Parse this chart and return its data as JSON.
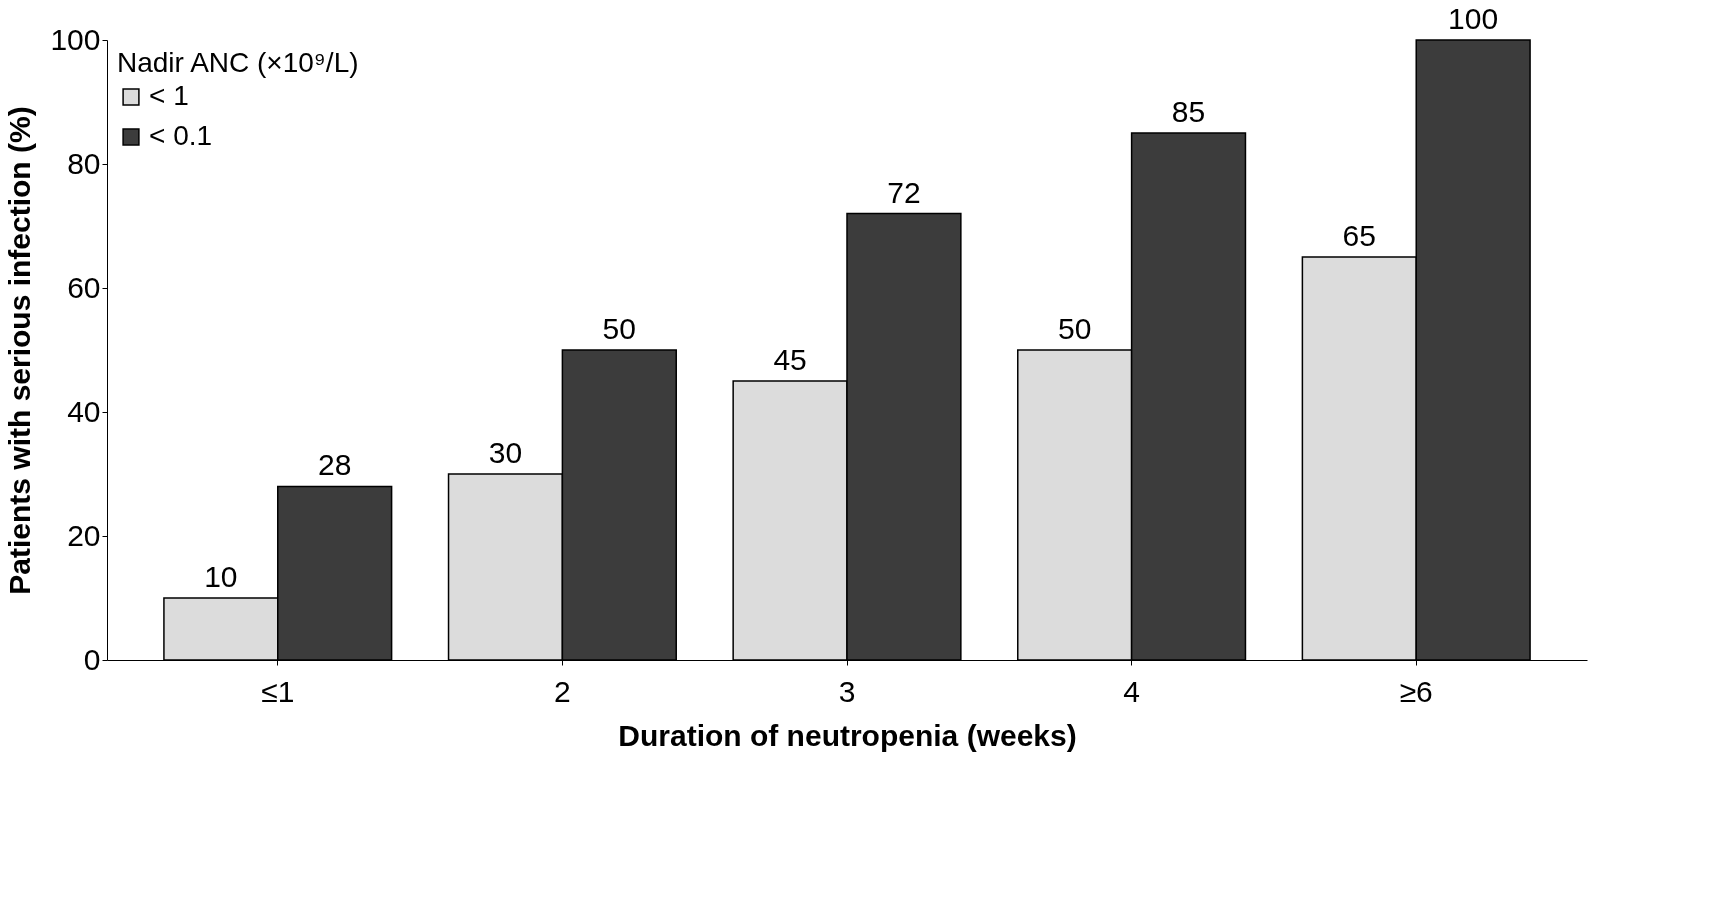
{
  "chart_data": {
    "type": "bar",
    "xlabel": "Duration of neutropenia (weeks)",
    "ylabel": "Patients with serious infection (%)",
    "legend_title": "Nadir ANC (×10⁹/L)",
    "categories": [
      "≤1",
      "2",
      "3",
      "4",
      "≥6"
    ],
    "series": [
      {
        "name": "< 1",
        "color": "#dcdcdc",
        "values": [
          10,
          30,
          45,
          50,
          65
        ]
      },
      {
        "name": "< 0.1",
        "color": "#3c3c3c",
        "values": [
          28,
          50,
          72,
          85,
          100
        ]
      }
    ],
    "ylim": [
      0,
      100
    ],
    "yticks": [
      0,
      20,
      40,
      60,
      80,
      100
    ],
    "grid": false,
    "legend": "top left",
    "data_labels": true
  }
}
